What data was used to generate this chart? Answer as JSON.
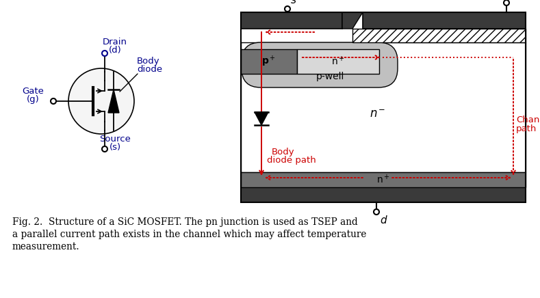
{
  "colors": {
    "dark_gray": "#3a3a3a",
    "mid_gray": "#707070",
    "light_gray": "#b8b8b8",
    "very_light_gray": "#d8d8d8",
    "pwell_gray": "#c0c0c0",
    "white": "#ffffff",
    "black": "#000000",
    "red": "#cc0000",
    "blue": "#00008b",
    "bg": "#ffffff"
  },
  "caption_line1": "Fig. 2.  Structure of a SiC MOSFET. The pn junction is used as TSEP and",
  "caption_line2": "a parallel current path exists in the channel which may affect temperature",
  "caption_line3": "measurement."
}
